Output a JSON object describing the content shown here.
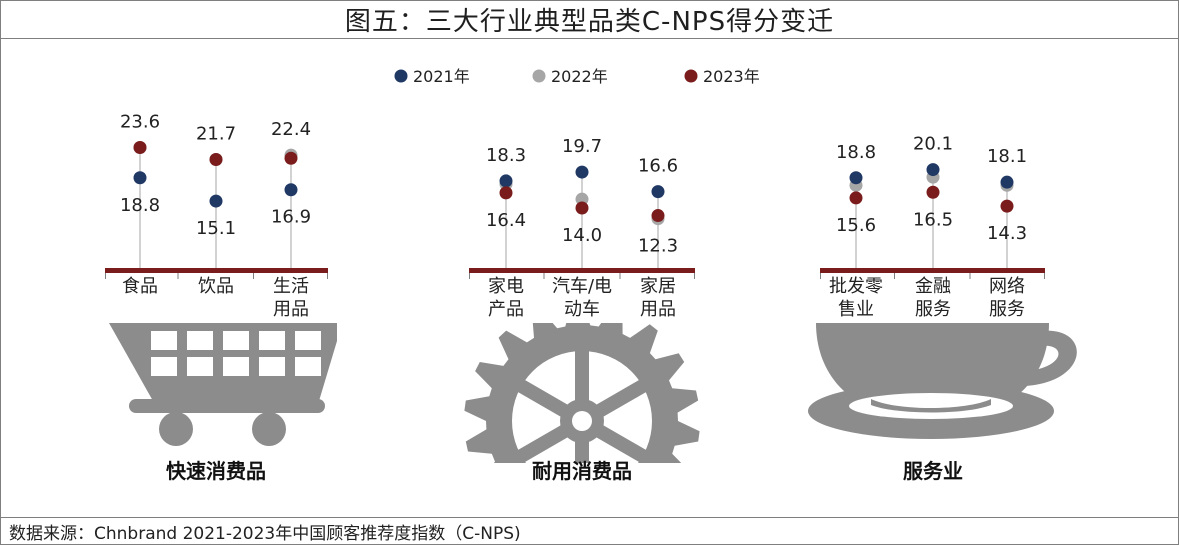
{
  "title": "图五：三大行业典型品类C-NPS得分变迁",
  "source": "数据来源：Chnbrand 2021-2023年中国顾客推荐度指数（C-NPS)",
  "colors": {
    "y2021": "#1f3864",
    "y2022": "#a6a6a6",
    "y2023": "#7b1c1c",
    "base": "#7b1c1c",
    "icon": "#8c8c8c"
  },
  "chart_data": {
    "type": "scatter",
    "legend": {
      "position": "top-center",
      "entries": [
        "2021年",
        "2022年",
        "2023年"
      ]
    },
    "groups": [
      {
        "name": "快速消费品",
        "icon": "shopping-cart-icon",
        "categories": [
          {
            "label": [
              "食品"
            ],
            "y2021": 18.8,
            "y2022": 23.6,
            "y2023": 23.6,
            "max_label": "23.6",
            "min_label": "18.8"
          },
          {
            "label": [
              "饮品"
            ],
            "y2021": 15.1,
            "y2022": 21.7,
            "y2023": 21.7,
            "max_label": "21.7",
            "min_label": "15.1"
          },
          {
            "label": [
              "生活",
              "用品"
            ],
            "y2021": 16.9,
            "y2022": 22.4,
            "y2023": 21.9,
            "max_label": "22.4",
            "min_label": "16.9"
          }
        ]
      },
      {
        "name": "耐用消费品",
        "icon": "gear-icon",
        "categories": [
          {
            "label": [
              "家电",
              "产品"
            ],
            "y2021": 18.3,
            "y2022": 17.8,
            "y2023": 16.4,
            "max_label": "18.3",
            "min_label": "16.4"
          },
          {
            "label": [
              "汽车/电",
              "动车"
            ],
            "y2021": 19.7,
            "y2022": 15.4,
            "y2023": 14.0,
            "max_label": "19.7",
            "min_label": "14.0"
          },
          {
            "label": [
              "家居",
              "用品"
            ],
            "y2021": 16.6,
            "y2022": 12.3,
            "y2023": 12.8,
            "max_label": "16.6",
            "min_label": "12.3"
          }
        ]
      },
      {
        "name": "服务业",
        "icon": "coffee-cup-icon",
        "categories": [
          {
            "label": [
              "批发零",
              "售业"
            ],
            "y2021": 18.8,
            "y2022": 17.6,
            "y2023": 15.6,
            "max_label": "18.8",
            "min_label": "15.6"
          },
          {
            "label": [
              "金融",
              "服务"
            ],
            "y2021": 20.1,
            "y2022": 18.9,
            "y2023": 16.5,
            "max_label": "20.1",
            "min_label": "16.5"
          },
          {
            "label": [
              "网络",
              "服务"
            ],
            "y2021": 18.1,
            "y2022": 17.6,
            "y2023": 14.3,
            "max_label": "18.1",
            "min_label": "14.3"
          }
        ]
      }
    ]
  }
}
